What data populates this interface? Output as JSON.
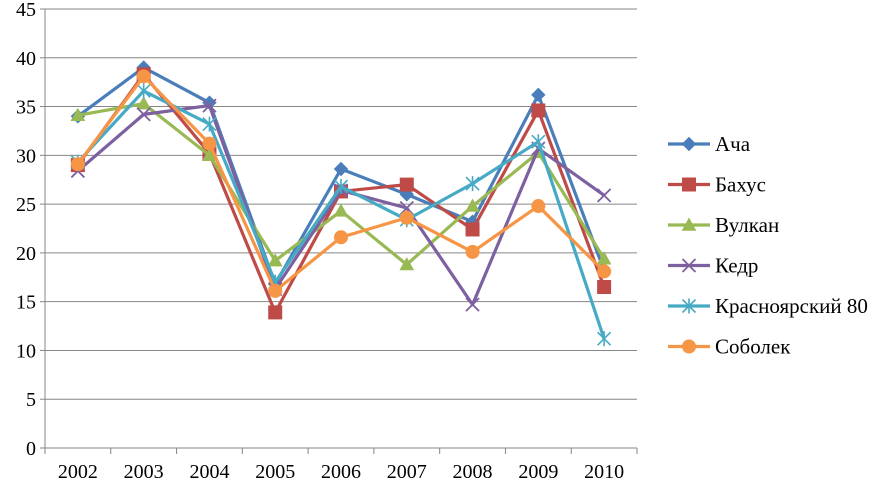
{
  "chart_data": {
    "type": "line",
    "title": "",
    "xlabel": "",
    "ylabel": "",
    "categories": [
      "2002",
      "2003",
      "2004",
      "2005",
      "2006",
      "2007",
      "2008",
      "2009",
      "2010"
    ],
    "ylim": [
      0,
      45
    ],
    "yticks": [
      0,
      5,
      10,
      15,
      20,
      25,
      30,
      35,
      40,
      45
    ],
    "grid": "horizontal",
    "legend_position": "right",
    "series": [
      {
        "name": "Ача",
        "color": "#4a7ebb",
        "marker": "diamond",
        "values": [
          34.0,
          39.0,
          35.4,
          16.8,
          28.6,
          26.0,
          23.2,
          36.2,
          18.2
        ]
      },
      {
        "name": "Бахус",
        "color": "#be4b48",
        "marker": "square",
        "values": [
          29.0,
          38.3,
          30.2,
          13.9,
          26.3,
          27.0,
          22.4,
          34.6,
          16.5
        ]
      },
      {
        "name": "Вулкан",
        "color": "#98b954",
        "marker": "triangle",
        "values": [
          34.1,
          35.3,
          30.0,
          19.2,
          24.3,
          18.8,
          24.8,
          30.3,
          19.4
        ]
      },
      {
        "name": "Кедр",
        "color": "#7d60a0",
        "marker": "x",
        "values": [
          28.4,
          34.2,
          35.1,
          16.3,
          26.4,
          24.6,
          14.7,
          30.7,
          25.9
        ]
      },
      {
        "name": "Красноярский 80",
        "color": "#46aac5",
        "marker": "star",
        "values": [
          29.3,
          36.6,
          33.2,
          17.0,
          26.8,
          23.4,
          27.1,
          31.4,
          11.2
        ]
      },
      {
        "name": "Соболек",
        "color": "#f69545",
        "marker": "circle",
        "values": [
          29.1,
          38.1,
          31.2,
          16.1,
          21.6,
          23.6,
          20.1,
          24.8,
          18.1
        ]
      }
    ]
  }
}
